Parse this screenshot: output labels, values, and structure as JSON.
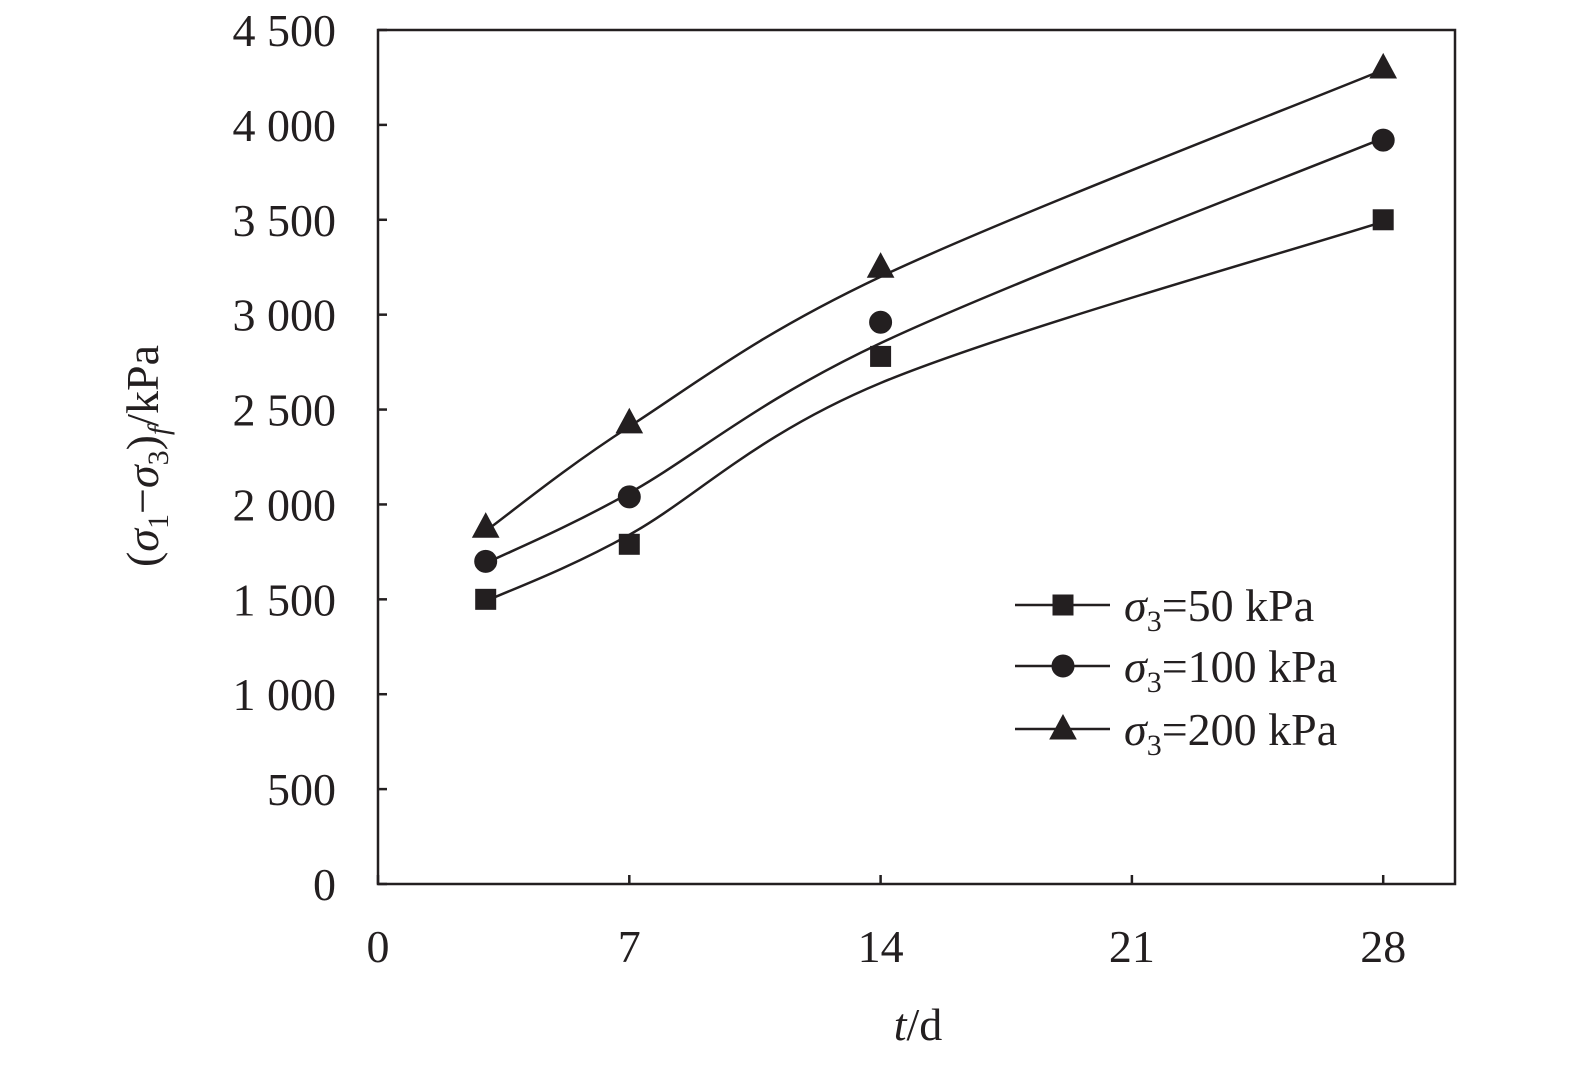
{
  "chart_data": {
    "type": "line",
    "xlabel": {
      "italic": "t",
      "rest": "/d"
    },
    "ylabel": {
      "open": "(",
      "s1": "σ",
      "sub1": "1",
      "minus": "−",
      "s3": "σ",
      "sub3": "3",
      "close": ")",
      "subf": "f",
      "unit": "/kPa"
    },
    "xlim": [
      0,
      30
    ],
    "ylim": [
      0,
      4500
    ],
    "x_ticks": [
      0,
      7,
      14,
      21,
      28
    ],
    "x_tick_labels": [
      "0",
      "7",
      "14",
      "21",
      "28"
    ],
    "y_ticks": [
      0,
      500,
      1000,
      1500,
      2000,
      2500,
      3000,
      3500,
      4000,
      4500
    ],
    "y_tick_labels": [
      "0",
      "500",
      "1 000",
      "1 500",
      "2 000",
      "2 500",
      "3 000",
      "3 500",
      "4 000",
      "4 500"
    ],
    "grid": false,
    "legend_position": "bottom-right",
    "color": "#231f20",
    "series": [
      {
        "name": {
          "sym": "σ",
          "sub": "3",
          "rest": "=50 kPa"
        },
        "marker": "square",
        "x": [
          3,
          7,
          14,
          28
        ],
        "y": [
          1500,
          1790,
          2780,
          3500
        ],
        "fit": [
          1490,
          1840,
          2640,
          3490
        ]
      },
      {
        "name": {
          "sym": "σ",
          "sub": "3",
          "rest": "=100 kPa"
        },
        "marker": "circle",
        "x": [
          3,
          7,
          14,
          28
        ],
        "y": [
          1700,
          2040,
          2960,
          3920
        ],
        "fit": [
          1690,
          2060,
          2850,
          3930
        ]
      },
      {
        "name": {
          "sym": "σ",
          "sub": "3",
          "rest": "=200 kPa"
        },
        "marker": "triangle",
        "x": [
          3,
          7,
          14,
          28
        ],
        "y": [
          1880,
          2430,
          3250,
          4300
        ],
        "fit": [
          1860,
          2410,
          3200,
          4290
        ]
      }
    ]
  }
}
